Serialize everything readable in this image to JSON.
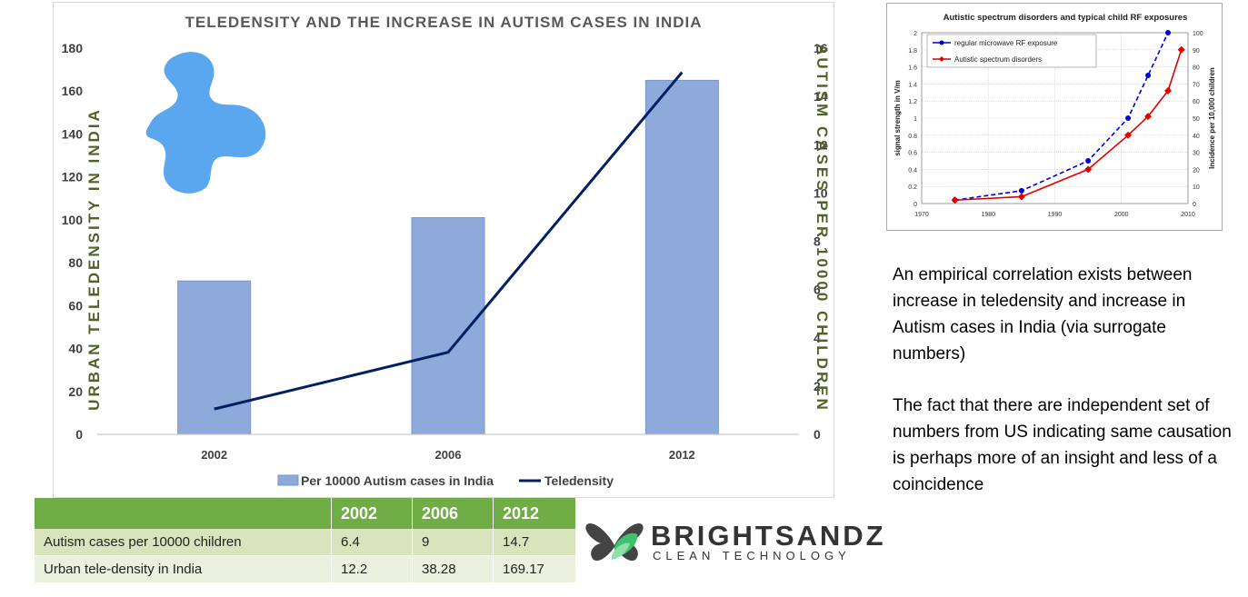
{
  "main_chart": {
    "title": "TELEDENSITY AND THE INCREASE IN AUTISM CASES IN INDIA",
    "y_left_label": "URBAN TELEDENSITY IN INDIA",
    "y_right_label": "AUTISM CASES PER 10000 CHILDREN",
    "legend_bar": "Per 10000 Autism cases in India",
    "legend_line": "Teledensity",
    "bar_color": "#8eaadb",
    "line_color": "#002060"
  },
  "inset_chart": {
    "title": "Autistic spectrum disorders and typical child RF exposures",
    "y_left_label": "signal strength in V/m",
    "y_right_label": "Incidence per 10,000 children",
    "legend_blue": "regular microwave RF exposure",
    "legend_red": "Autistic spectrum disorders",
    "blue_color": "#0000dd",
    "red_color": "#e00000"
  },
  "chart_data": [
    {
      "type": "bar",
      "title": "TELEDENSITY AND THE INCREASE IN AUTISM CASES IN INDIA",
      "categories": [
        "2002",
        "2006",
        "2012"
      ],
      "left_axis": {
        "label": "URBAN TELEDENSITY IN INDIA",
        "ylim": [
          0,
          180
        ],
        "ticks": [
          0,
          20,
          40,
          60,
          80,
          100,
          120,
          140,
          160,
          180
        ]
      },
      "right_axis": {
        "label": "AUTISM CASES PER 10000 CHILDREN",
        "ylim": [
          0,
          16
        ],
        "ticks": [
          0,
          2,
          4,
          6,
          8,
          10,
          12,
          14,
          16
        ]
      },
      "series": [
        {
          "name": "Per 10000 Autism cases in India",
          "kind": "bar",
          "axis": "left",
          "values": [
            71.5,
            101,
            165
          ]
        },
        {
          "name": "Teledensity",
          "kind": "line",
          "axis": "right",
          "values": [
            1.05,
            3.4,
            15
          ]
        }
      ],
      "legend": "bottom"
    },
    {
      "type": "line",
      "title": "Autistic spectrum disorders and typical child RF exposures",
      "x_ticks": [
        1970,
        1980,
        1990,
        2000,
        2010
      ],
      "xlim": [
        1970,
        2010
      ],
      "left_axis": {
        "label": "signal strength in V/m",
        "ylim": [
          0,
          2
        ],
        "ticks": [
          "0",
          "0.2",
          "0.4",
          "0.6",
          "0.8",
          "1",
          "1.2",
          "1.4",
          "1.6",
          "1.8",
          "2"
        ]
      },
      "right_axis": {
        "label": "Incidence per 10,000 children",
        "ylim": [
          0,
          100
        ],
        "ticks": [
          0,
          10,
          20,
          30,
          40,
          50,
          60,
          70,
          80,
          90,
          100
        ]
      },
      "series": [
        {
          "name": "regular microwave RF exposure",
          "axis": "left",
          "x": [
            1975,
            1985,
            1995,
            2001,
            2004,
            2007
          ],
          "y": [
            0.04,
            0.15,
            0.5,
            1.0,
            1.5,
            2.0
          ]
        },
        {
          "name": "Autistic spectrum disorders",
          "axis": "right",
          "x": [
            1975,
            1985,
            1995,
            2001,
            2004,
            2007,
            2009
          ],
          "y": [
            2,
            4,
            20,
            40,
            51,
            66,
            90
          ]
        }
      ],
      "grid": true,
      "legend": "top-left"
    }
  ],
  "table": {
    "headers": [
      "",
      "2002",
      "2006",
      "2012"
    ],
    "rows": [
      [
        "Autism cases per 10000 children",
        "6.4",
        "9",
        "14.7"
      ],
      [
        "Urban tele-density in India",
        "12.2",
        "38.28",
        "169.17"
      ]
    ]
  },
  "logo": {
    "name": "BRIGHTSANDZ",
    "tagline": "CLEAN TECHNOLOGY"
  },
  "notes": [
    "An empirical correlation exists between increase in teledensity and increase in Autism cases in India (via surrogate numbers)",
    "The fact that there are independent set of numbers from US indicating same causation is perhaps more of an insight and less of a coincidence"
  ]
}
